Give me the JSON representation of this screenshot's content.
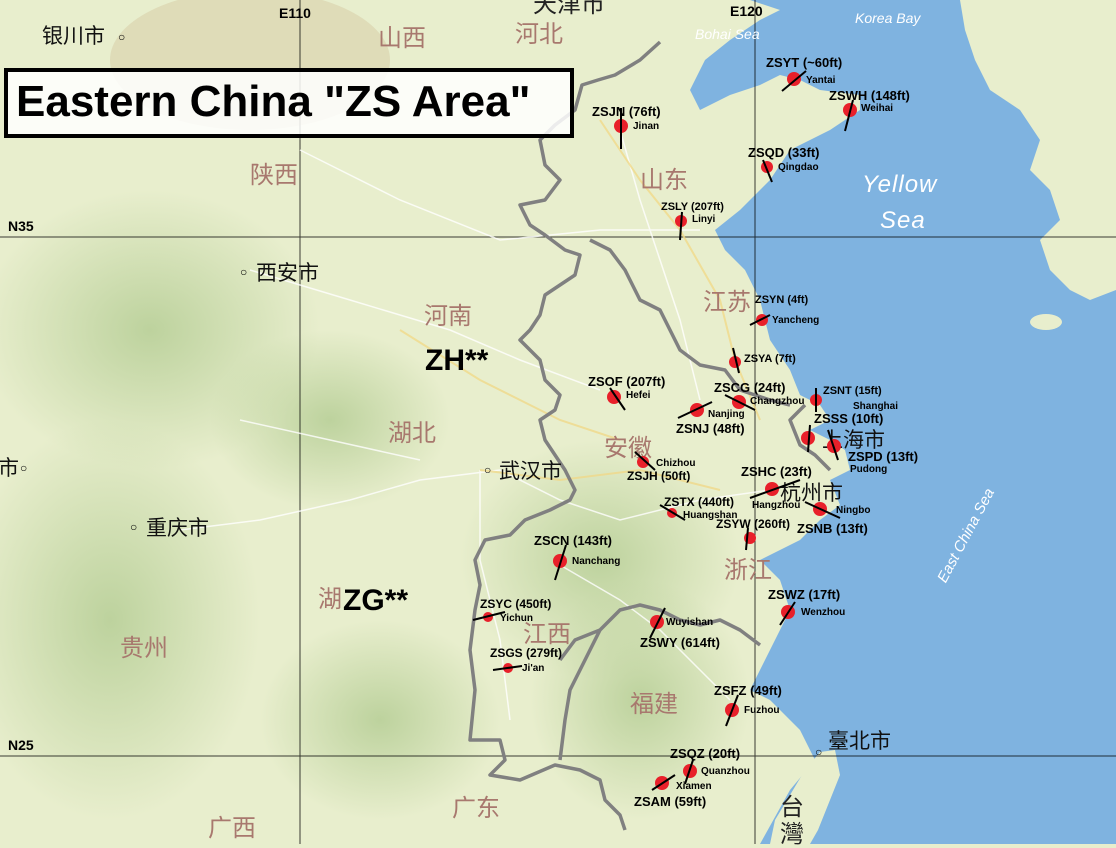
{
  "title": "Eastern China \"ZS Area\"",
  "grid_labels": {
    "e110": "E110",
    "e120": "E120",
    "n35": "N35",
    "n25": "N25"
  },
  "regions": {
    "zh": "ZH**",
    "zg": "ZG**"
  },
  "seas": {
    "bohai": "Bohai Sea",
    "korea_bay": "Korea Bay",
    "yellow_1": "Yellow",
    "yellow_2": "Sea",
    "east_china": "East China Sea"
  },
  "provinces": {
    "shanxi": "山西",
    "hebei": "河北",
    "shaanxi": "陕西",
    "shandong": "山东",
    "henan": "河南",
    "jiangsu": "江苏",
    "hubei": "湖北",
    "anhui": "安徽",
    "hunan": "湖",
    "guizhou": "贵州",
    "jiangxi": "江西",
    "zhejiang": "浙江",
    "fujian": "福建",
    "guangdong": "广东",
    "guangxi": "广西",
    "taiwan_1": "台",
    "taiwan_2": "灣",
    "tianjin": "天津市"
  },
  "cities": {
    "yinchuan": "银川市",
    "xian": "西安市",
    "wuhan": "武汉市",
    "chongqing": "重庆市",
    "chengdu_part": "市",
    "shanghai": "上海市",
    "hangzhou": "杭州市",
    "taipei": "臺北市"
  },
  "airports": [
    {
      "code": "ZSYT (~60ft)",
      "city": "Yantai"
    },
    {
      "code": "ZSWH (148ft)",
      "city": "Weihai"
    },
    {
      "code": "ZSJN (76ft)",
      "city": "Jinan"
    },
    {
      "code": "ZSQD (33ft)",
      "city": "Qingdao"
    },
    {
      "code": "ZSLY (207ft)",
      "city": "Linyi"
    },
    {
      "code": "ZSYN (4ft)",
      "city": "Yancheng"
    },
    {
      "code": "ZSYA (7ft)",
      "city": ""
    },
    {
      "code": "ZSOF (207ft)",
      "city": "Hefei"
    },
    {
      "code": "ZSCG (24ft)",
      "city": "Changzhou"
    },
    {
      "code": "ZSNT (15ft)",
      "city": "Shanghai"
    },
    {
      "code": "ZSNJ (48ft)",
      "city": "Nanjing"
    },
    {
      "code": "ZSSS (10ft)",
      "city": ""
    },
    {
      "code": "ZSPD (13ft)",
      "city": "Pudong"
    },
    {
      "code": "ZSJH (50ft)",
      "city": "Chizhou"
    },
    {
      "code": "ZSHC (23ft)",
      "city": "Hangzhou"
    },
    {
      "code": "ZSTX (440ft)",
      "city": "Huangshan"
    },
    {
      "code": "ZSNB (13ft)",
      "city": "Ningbo"
    },
    {
      "code": "ZSYW (260ft)",
      "city": ""
    },
    {
      "code": "ZSCN (143ft)",
      "city": "Nanchang"
    },
    {
      "code": "ZSWZ (17ft)",
      "city": "Wenzhou"
    },
    {
      "code": "ZSYC (450ft)",
      "city": "Yichun"
    },
    {
      "code": "ZSWY (614ft)",
      "city": "Wuyishan"
    },
    {
      "code": "ZSGS (279ft)",
      "city": "Ji'an"
    },
    {
      "code": "ZSFZ (49ft)",
      "city": "Fuzhou"
    },
    {
      "code": "ZSQZ (20ft)",
      "city": "Quanzhou"
    },
    {
      "code": "ZSAM (59ft)",
      "city": "Xiamen"
    }
  ],
  "colors": {
    "land": "#e8eecd",
    "sea": "#7fb3e0",
    "border": "#808080",
    "airport_dot": "#e8202a",
    "runway": "#000000"
  }
}
